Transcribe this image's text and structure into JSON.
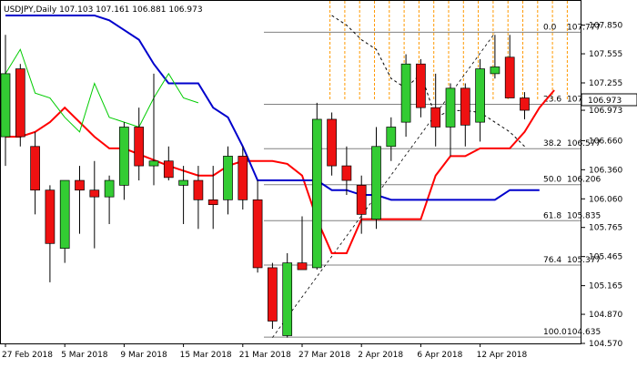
{
  "chart_data": {
    "type": "candlestick",
    "title": "USDJPY,Daily  107.103 107.161 106.881 106.973",
    "symbol": "USDJPY",
    "timeframe": "Daily",
    "ohlc_header": {
      "open": 107.103,
      "high": 107.161,
      "low": 106.881,
      "close": 106.973
    },
    "current_price": 106.973,
    "ylim": [
      104.57,
      108.1
    ],
    "y_ticks": [
      "107.850",
      "107.555",
      "107.255",
      "106.973",
      "106.660",
      "106.360",
      "106.060",
      "105.765",
      "105.465",
      "105.165",
      "104.870",
      "104.570"
    ],
    "x_labels": [
      "27 Feb 2018",
      "5 Mar 2018",
      "9 Mar 2018",
      "15 Mar 2018",
      "21 Mar 2018",
      "27 Mar 2018",
      "2 Apr 2018",
      "6 Apr 2018",
      "12 Apr 2018"
    ],
    "x_label_index": [
      0,
      4,
      8,
      12,
      16,
      20,
      24,
      28,
      32
    ],
    "candles": [
      {
        "o": 106.7,
        "h": 107.75,
        "l": 106.4,
        "c": 107.35
      },
      {
        "o": 107.4,
        "h": 107.45,
        "l": 106.6,
        "c": 106.7
      },
      {
        "o": 106.6,
        "h": 106.75,
        "l": 105.9,
        "c": 106.15
      },
      {
        "o": 106.15,
        "h": 106.2,
        "l": 105.2,
        "c": 105.6
      },
      {
        "o": 105.55,
        "h": 106.25,
        "l": 105.4,
        "c": 106.25
      },
      {
        "o": 106.25,
        "h": 106.4,
        "l": 105.7,
        "c": 106.15
      },
      {
        "o": 106.15,
        "h": 106.45,
        "l": 105.55,
        "c": 106.08
      },
      {
        "o": 106.08,
        "h": 106.3,
        "l": 105.8,
        "c": 106.25
      },
      {
        "o": 106.2,
        "h": 106.85,
        "l": 106.05,
        "c": 106.8
      },
      {
        "o": 106.8,
        "h": 107.0,
        "l": 106.25,
        "c": 106.4
      },
      {
        "o": 106.4,
        "h": 107.35,
        "l": 106.2,
        "c": 106.45
      },
      {
        "o": 106.45,
        "h": 106.6,
        "l": 106.25,
        "c": 106.28
      },
      {
        "o": 106.2,
        "h": 106.4,
        "l": 105.8,
        "c": 106.25
      },
      {
        "o": 106.25,
        "h": 106.4,
        "l": 105.75,
        "c": 106.05
      },
      {
        "o": 106.05,
        "h": 106.4,
        "l": 105.75,
        "c": 106.0
      },
      {
        "o": 106.05,
        "h": 106.6,
        "l": 105.9,
        "c": 106.5
      },
      {
        "o": 106.5,
        "h": 106.6,
        "l": 105.95,
        "c": 106.05
      },
      {
        "o": 106.05,
        "h": 106.25,
        "l": 105.3,
        "c": 105.35
      },
      {
        "o": 105.35,
        "h": 105.4,
        "l": 104.72,
        "c": 104.8
      },
      {
        "o": 104.65,
        "h": 105.5,
        "l": 104.63,
        "c": 105.4
      },
      {
        "o": 105.4,
        "h": 105.88,
        "l": 105.35,
        "c": 105.33
      },
      {
        "o": 105.35,
        "h": 107.05,
        "l": 105.33,
        "c": 106.88
      },
      {
        "o": 106.88,
        "h": 106.95,
        "l": 106.3,
        "c": 106.4
      },
      {
        "o": 106.4,
        "h": 106.6,
        "l": 106.1,
        "c": 106.25
      },
      {
        "o": 106.2,
        "h": 106.3,
        "l": 105.7,
        "c": 105.9
      },
      {
        "o": 105.85,
        "h": 106.8,
        "l": 105.75,
        "c": 106.6
      },
      {
        "o": 106.6,
        "h": 106.9,
        "l": 106.45,
        "c": 106.8
      },
      {
        "o": 106.85,
        "h": 107.55,
        "l": 106.7,
        "c": 107.45
      },
      {
        "o": 107.45,
        "h": 107.5,
        "l": 106.9,
        "c": 107.0
      },
      {
        "o": 107.0,
        "h": 107.35,
        "l": 106.6,
        "c": 106.8
      },
      {
        "o": 106.8,
        "h": 107.25,
        "l": 106.5,
        "c": 107.2
      },
      {
        "o": 107.2,
        "h": 107.25,
        "l": 106.6,
        "c": 106.82
      },
      {
        "o": 106.85,
        "h": 107.5,
        "l": 106.65,
        "c": 107.4
      },
      {
        "o": 107.35,
        "h": 107.75,
        "l": 107.3,
        "c": 107.42
      },
      {
        "o": 107.52,
        "h": 107.75,
        "l": 107.1,
        "c": 107.1
      },
      {
        "o": 107.1,
        "h": 107.16,
        "l": 106.88,
        "c": 106.973
      }
    ],
    "fibonacci": [
      {
        "level": "0.0",
        "price": 107.777
      },
      {
        "level": "23.6",
        "price": 107.035
      },
      {
        "level": "38.2",
        "price": 106.577
      },
      {
        "level": "50.0",
        "price": 106.206
      },
      {
        "level": "61.8",
        "price": 105.835
      },
      {
        "level": "76.4",
        "price": 105.377
      },
      {
        "level": "100.0",
        "price": 104.635
      }
    ],
    "series": [
      {
        "color": "#ff0000",
        "values": [
          106.7,
          106.7,
          106.75,
          106.85,
          107.0,
          106.85,
          106.7,
          106.58,
          106.58,
          106.52,
          106.46,
          106.4,
          106.35,
          106.3,
          106.3,
          106.4,
          106.45,
          106.45,
          106.45,
          106.42,
          106.3,
          105.85,
          105.5,
          105.5,
          105.85,
          105.85,
          105.85,
          105.85,
          105.85,
          106.3,
          106.5,
          106.5,
          106.58,
          106.58,
          106.58,
          106.75,
          107.0,
          107.18
        ]
      },
      {
        "color": "#0000cc",
        "values": [
          107.95,
          107.95,
          107.95,
          107.95,
          107.95,
          107.95,
          107.95,
          107.9,
          107.8,
          107.7,
          107.45,
          107.25,
          107.25,
          107.25,
          107.0,
          106.9,
          106.6,
          106.25,
          106.25,
          106.25,
          106.25,
          106.25,
          106.15,
          106.15,
          106.1,
          106.1,
          106.05,
          106.05,
          106.05,
          106.05,
          106.05,
          106.05,
          106.05,
          106.05,
          106.15,
          106.15,
          106.15
        ]
      },
      {
        "color": "#00cc00",
        "values": [
          107.35,
          107.6,
          107.15,
          107.1,
          106.9,
          106.75,
          107.25,
          106.9,
          106.85,
          106.8,
          107.1,
          107.35,
          107.1,
          107.05
        ]
      },
      {
        "color": "#000000",
        "dash": true,
        "values": [
          107.95,
          107.85,
          107.7,
          107.6,
          107.3,
          107.2,
          107.35,
          106.9,
          106.97,
          106.97,
          106.95,
          106.85,
          106.75,
          106.6
        ]
      }
    ],
    "grid": false
  }
}
